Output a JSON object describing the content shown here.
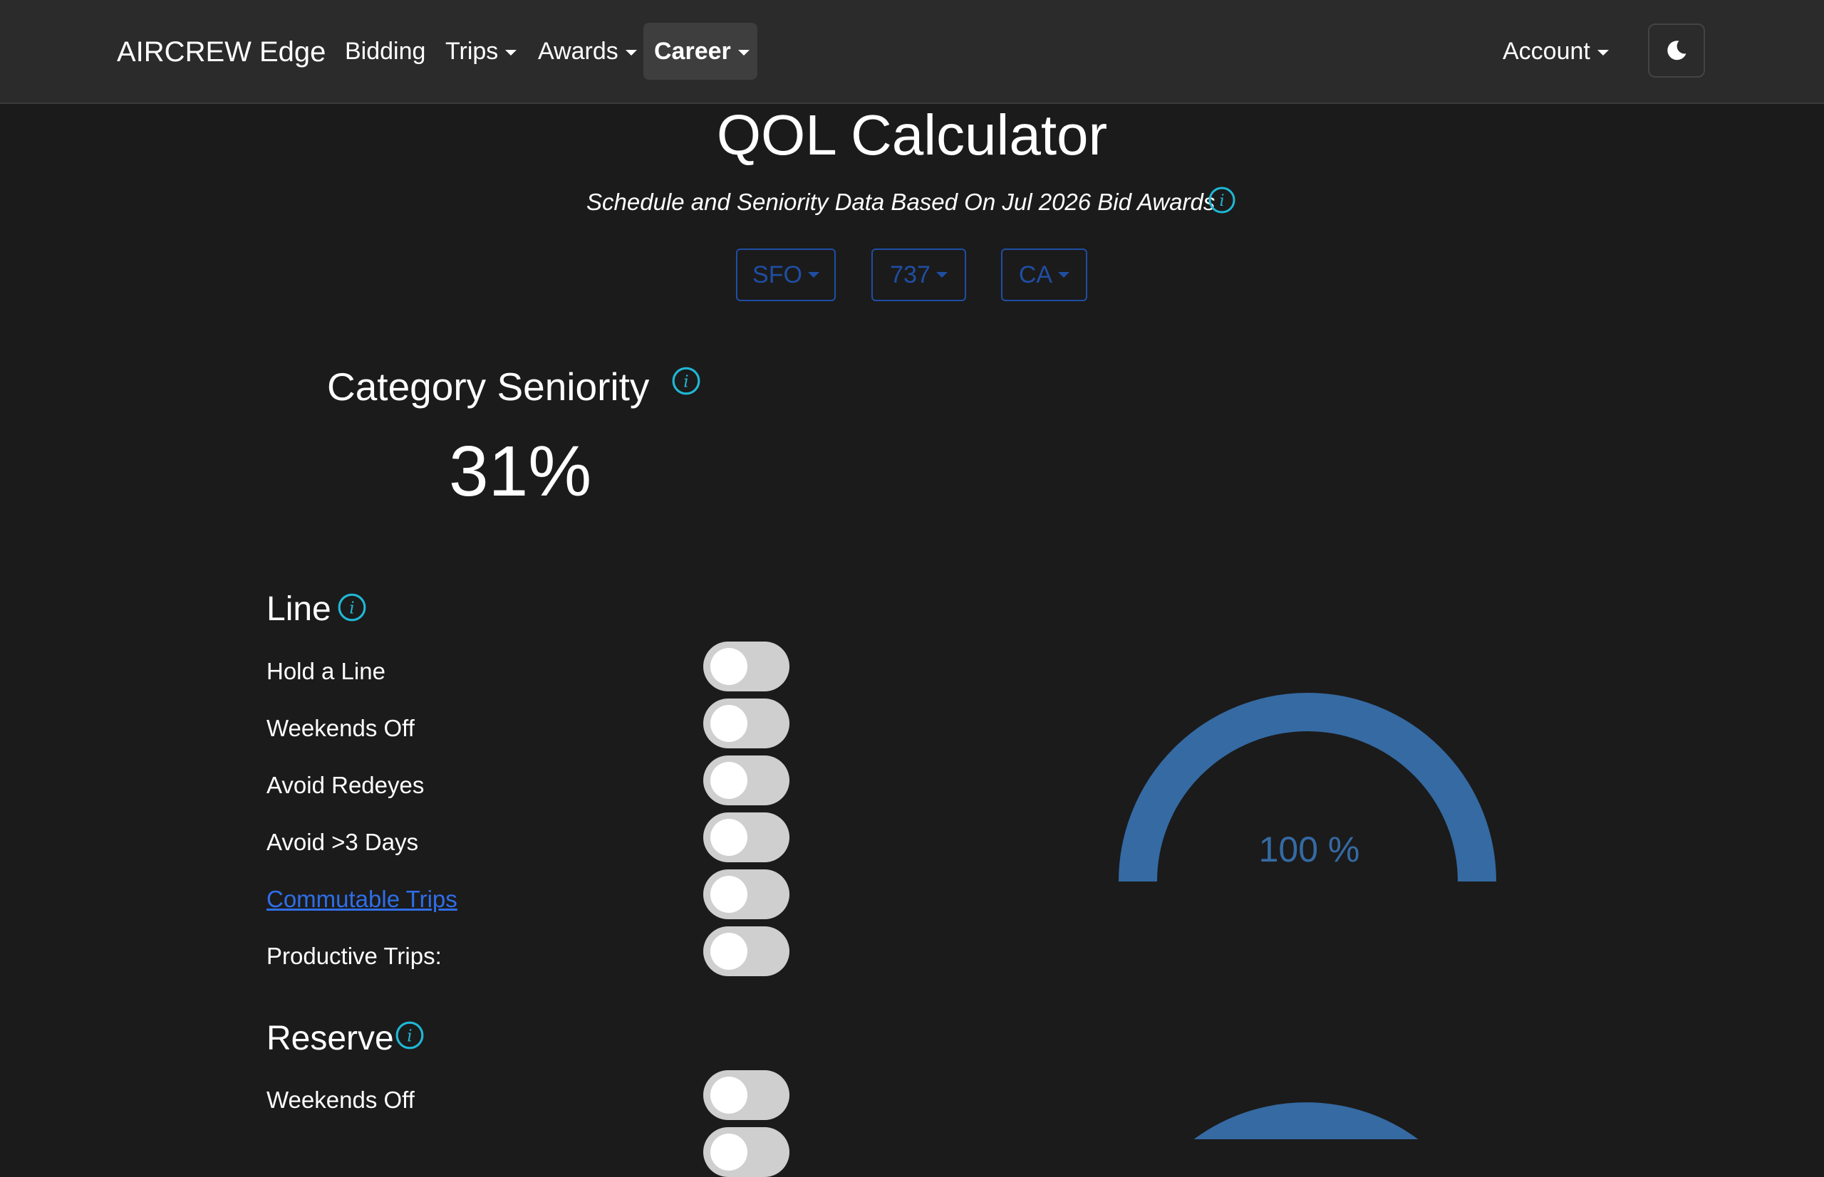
{
  "nav": {
    "brand": "AIRCREW Edge",
    "items": [
      {
        "label": "Bidding"
      },
      {
        "label": "Trips"
      },
      {
        "label": "Awards"
      },
      {
        "label": "Career"
      }
    ],
    "account": "Account",
    "theme_icon": "moon-icon"
  },
  "header": {
    "title": "QOL Calculator",
    "subtitle": "Schedule and Seniority Data Based On Jul 2026 Bid Awards"
  },
  "filters": {
    "base": "SFO",
    "equipment": "737",
    "seat": "CA"
  },
  "seniority": {
    "title": "Category Seniority",
    "value": "31%"
  },
  "line": {
    "title": "Line",
    "options": [
      {
        "label": "Hold a Line",
        "on": false
      },
      {
        "label": "Weekends Off",
        "on": false
      },
      {
        "label": "Avoid Redeyes",
        "on": false
      },
      {
        "label": "Avoid >3 Days",
        "on": false
      },
      {
        "label": "Commutable Trips",
        "on": false
      },
      {
        "label": "Productive Trips:",
        "on": false
      }
    ],
    "gauge_value": "100 %",
    "gauge_percent": 100
  },
  "reserve": {
    "title": "Reserve",
    "options": [
      {
        "label": "Weekends Off",
        "on": false
      }
    ]
  },
  "colors": {
    "accent": "#1f4ea3",
    "gauge": "#356aa3",
    "info": "#1fb8d6",
    "link": "#2f6ee8"
  }
}
